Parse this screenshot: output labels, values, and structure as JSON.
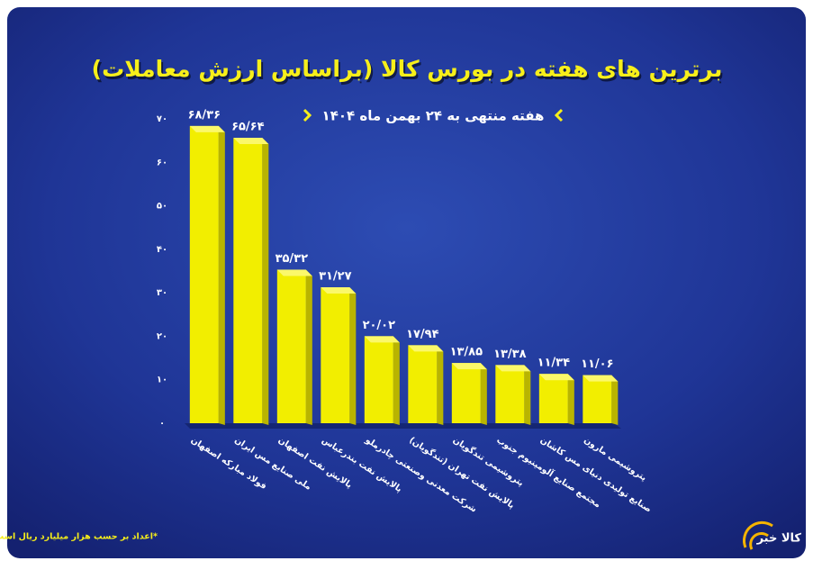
{
  "chart_data": {
    "type": "bar",
    "title": "برترین های هفته در بورس کالا (براساس ارزش معاملات)",
    "subtitle": "هفته منتهی به ۲۴ بهمن ماه ۱۴۰۴",
    "note": "*اعداد بر حسب هزار میلیارد ریال است",
    "logo": "کالا خبر",
    "categories": [
      "فولاد مبارکه اصفهان",
      "ملی صنایع مس ایران",
      "پالایش نفت اصفهان",
      "پالایش نفت بندرعباس",
      "شرکت معدنی وصنعتی چادرملو",
      "پالایش نفت تهران (تندگویان)",
      "پتروشیمی تندگویان",
      "مجتمع صنایع آلومینیوم جنوب",
      "صنایع تولیدی دنیای مس کاشان",
      "پتروشیمی مارون"
    ],
    "values": [
      68.36,
      65.64,
      35.32,
      31.27,
      20.02,
      17.94,
      13.85,
      13.38,
      11.34,
      11.06
    ],
    "value_labels": [
      "۶۸/۳۶",
      "۶۵/۶۴",
      "۳۵/۳۲",
      "۳۱/۲۷",
      "۲۰/۰۲",
      "۱۷/۹۴",
      "۱۳/۸۵",
      "۱۳/۳۸",
      "۱۱/۳۴",
      "۱۱/۰۶"
    ],
    "color": "#f2ee00",
    "ylim": [
      0,
      70
    ],
    "yticks": [
      {
        "value": 0,
        "label": "۰"
      },
      {
        "value": 10,
        "label": "۱۰"
      },
      {
        "value": 20,
        "label": "۲۰"
      },
      {
        "value": 30,
        "label": "۳۰"
      },
      {
        "value": 40,
        "label": "۴۰"
      },
      {
        "value": 50,
        "label": "۵۰"
      },
      {
        "value": 60,
        "label": "۶۰"
      },
      {
        "value": 70,
        "label": "۷۰"
      }
    ],
    "grid": false
  }
}
